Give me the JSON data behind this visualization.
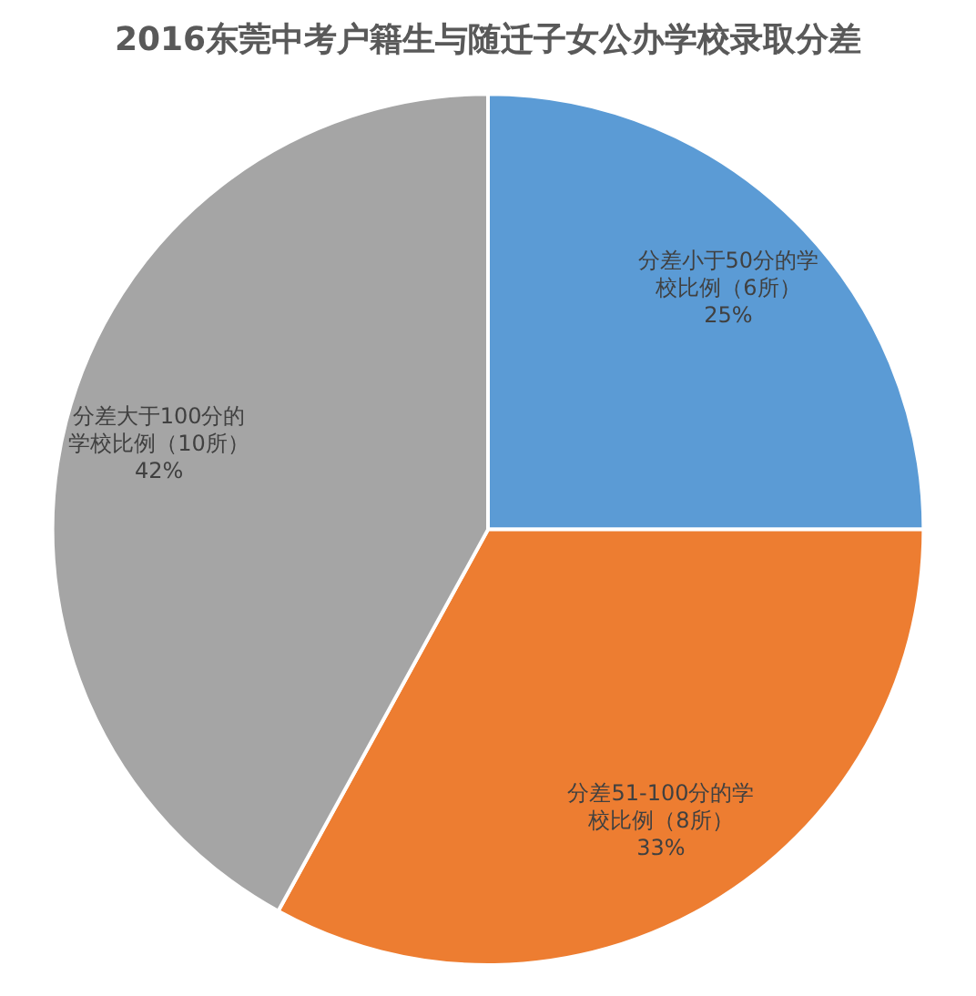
{
  "chart_data": {
    "type": "pie",
    "title": "2016东莞中考户籍生与随迁子女公办学校录取分差",
    "categories": [
      "分差小于50分的学校比例（6所）",
      "分差51-100分的学校比例（8所）",
      "分差大于100分的学校比例（10所）"
    ],
    "values": [
      25,
      33,
      42
    ],
    "colors": [
      "#5b9bd5",
      "#ed7d31",
      "#a5a5a5"
    ],
    "value_labels": [
      "25%",
      "33%",
      "42%"
    ]
  }
}
